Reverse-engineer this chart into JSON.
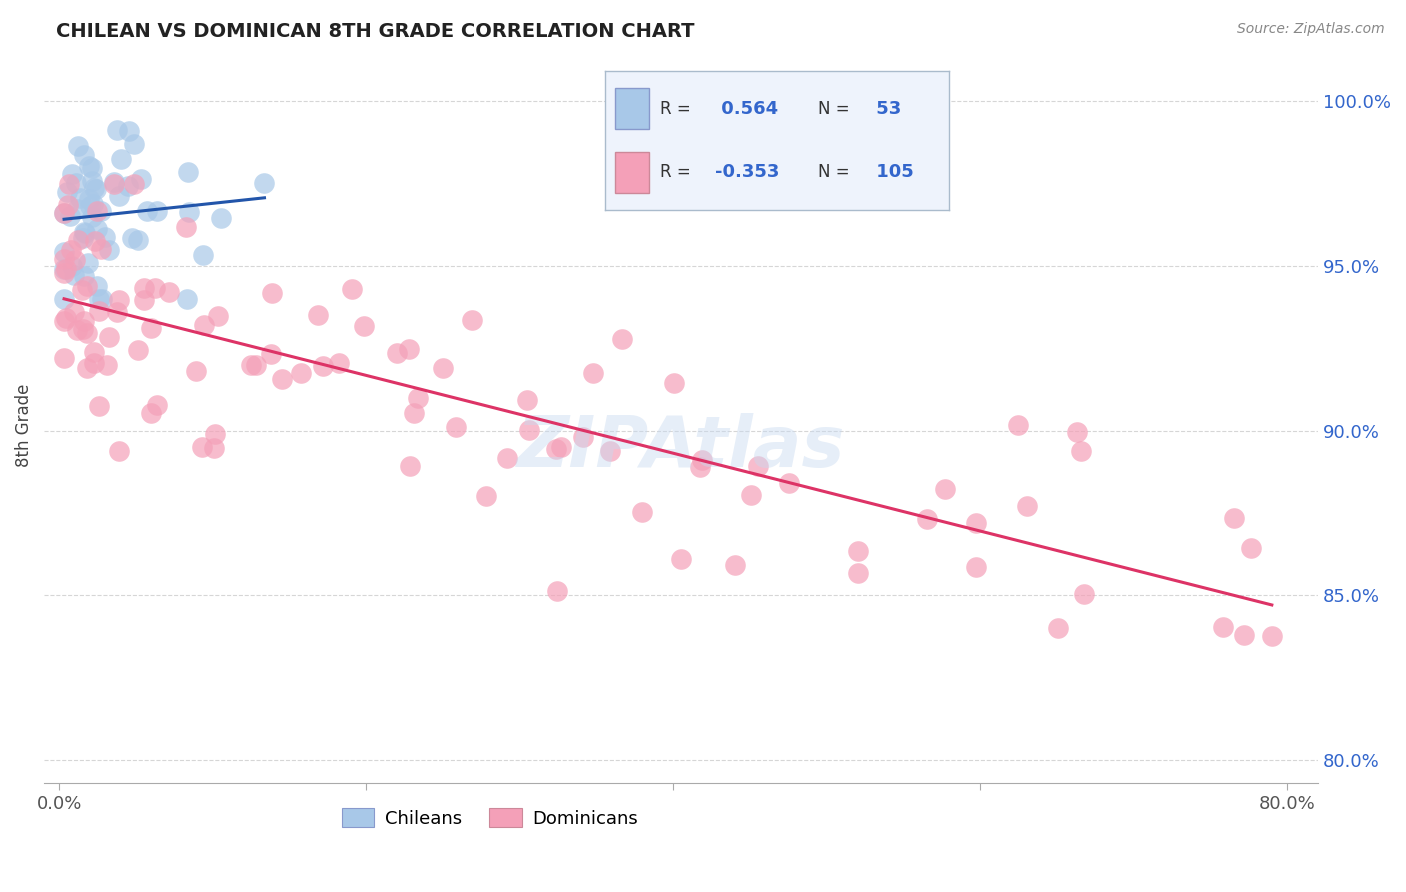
{
  "title": "CHILEAN VS DOMINICAN 8TH GRADE CORRELATION CHART",
  "source": "Source: ZipAtlas.com",
  "ylabel": "8th Grade",
  "xlim": [
    -0.01,
    0.82
  ],
  "ylim": [
    0.793,
    1.01
  ],
  "xticks": [
    0.0,
    0.2,
    0.4,
    0.6,
    0.8
  ],
  "xtick_labels": [
    "0.0%",
    "",
    "",
    "",
    "80.0%"
  ],
  "ytick_labels_right": [
    "80.0%",
    "85.0%",
    "90.0%",
    "95.0%",
    "100.0%"
  ],
  "yticks_right": [
    0.8,
    0.85,
    0.9,
    0.95,
    1.0
  ],
  "chilean_color": "#a8c8e8",
  "dominican_color": "#f4a0b8",
  "chilean_line_color": "#2255aa",
  "dominican_line_color": "#dd3366",
  "legend_text_color": "#3366cc",
  "R_chilean": 0.564,
  "N_chilean": 53,
  "R_dominican": -0.353,
  "N_dominican": 105,
  "background_color": "#ffffff",
  "grid_color": "#cccccc"
}
